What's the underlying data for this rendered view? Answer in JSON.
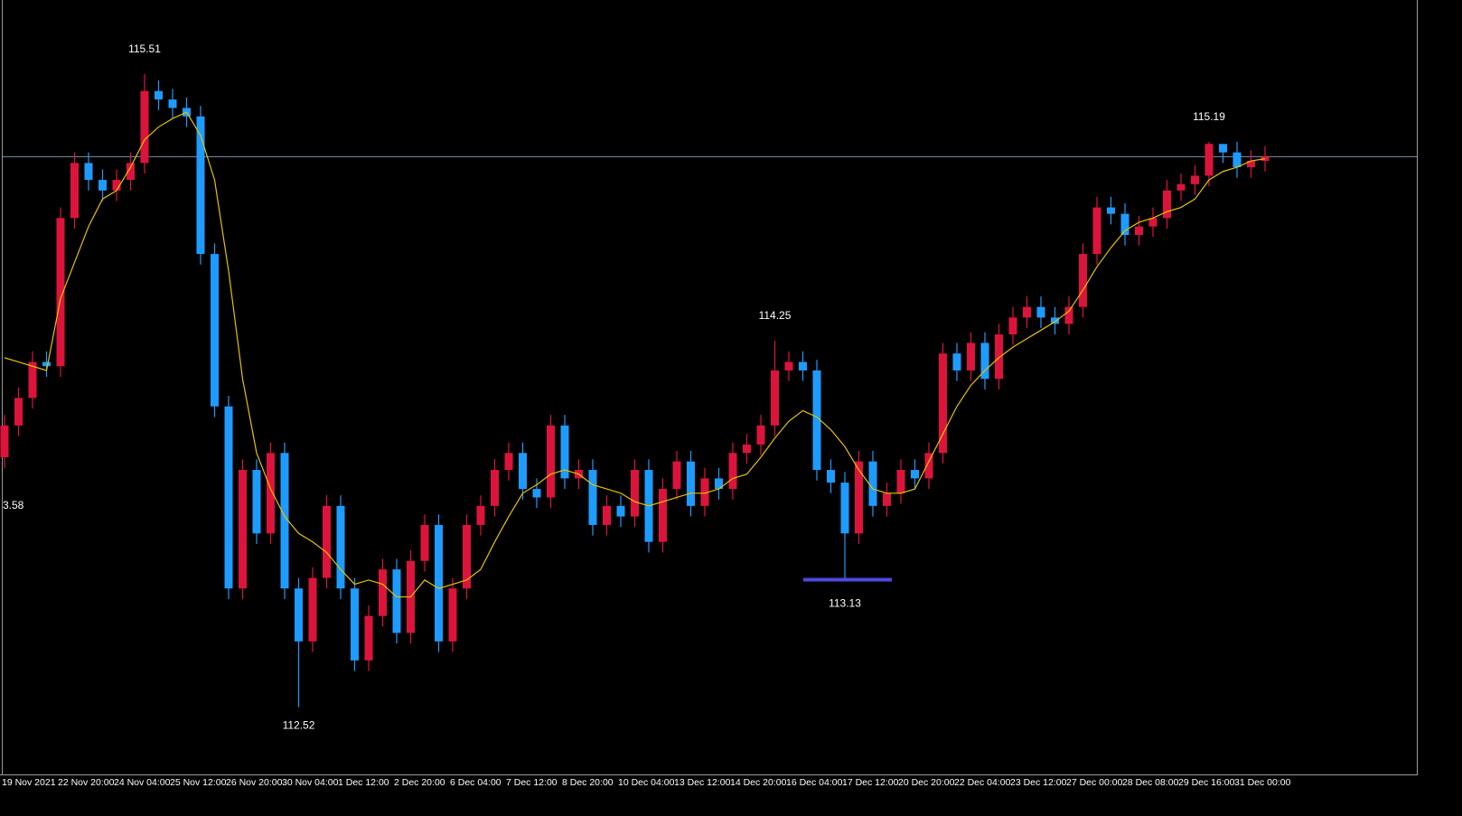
{
  "chart_data": {
    "type": "candlestick",
    "categories": [
      "19 Nov 2021",
      null,
      null,
      null,
      "22 Nov 20:00",
      null,
      null,
      null,
      "24 Nov 04:00",
      null,
      null,
      null,
      "25 Nov 12:00",
      null,
      null,
      null,
      "26 Nov 20:00",
      null,
      null,
      null,
      "30 Nov 04:00",
      null,
      null,
      null,
      "1 Dec 12:00",
      null,
      null,
      null,
      "2 Dec 20:00",
      null,
      null,
      null,
      "6 Dec 04:00",
      null,
      null,
      null,
      "7 Dec 12:00",
      null,
      null,
      null,
      "8 Dec 20:00",
      null,
      null,
      null,
      "10 Dec 04:00",
      null,
      null,
      null,
      "13 Dec 12:00",
      null,
      null,
      null,
      "14 Dec 20:00",
      null,
      null,
      null,
      "16 Dec 04:00",
      null,
      null,
      null,
      "17 Dec 12:00",
      null,
      null,
      null,
      "20 Dec 20:00",
      null,
      null,
      null,
      "22 Dec 04:00",
      null,
      null,
      null,
      "23 Dec 12:00",
      null,
      null,
      null,
      "27 Dec 00:00",
      null,
      null,
      null,
      "28 Dec 08:00",
      null,
      null,
      null,
      "29 Dec 16:00",
      null,
      null,
      null,
      "31 Dec 00:00",
      null,
      null
    ],
    "open": [
      113.7,
      113.85,
      113.98,
      114.15,
      114.13,
      114.83,
      115.09,
      115.01,
      114.96,
      115.01,
      115.09,
      115.43,
      115.39,
      115.35,
      115.31,
      114.66,
      113.94,
      113.08,
      113.64,
      113.34,
      113.72,
      113.08,
      112.83,
      113.13,
      113.47,
      113.08,
      112.74,
      112.95,
      113.17,
      112.87,
      113.21,
      113.38,
      112.83,
      113.08,
      113.38,
      113.47,
      113.64,
      113.72,
      113.55,
      113.51,
      113.85,
      113.6,
      113.64,
      113.38,
      113.47,
      113.42,
      113.64,
      113.3,
      113.55,
      113.68,
      113.47,
      113.6,
      113.55,
      113.72,
      113.76,
      113.85,
      114.11,
      114.15,
      114.11,
      113.64,
      113.58,
      113.34,
      113.68,
      113.47,
      113.53,
      113.64,
      113.6,
      113.72,
      114.19,
      114.11,
      114.24,
      114.07,
      114.28,
      114.36,
      114.41,
      114.36,
      114.33,
      114.41,
      114.66,
      114.88,
      114.85,
      114.75,
      114.79,
      114.83,
      114.96,
      114.99,
      115.03,
      115.18,
      115.14,
      115.07,
      115.1
    ],
    "high": [
      113.9,
      114.03,
      114.2,
      114.2,
      114.88,
      115.14,
      115.14,
      115.06,
      115.06,
      115.14,
      115.51,
      115.48,
      115.44,
      115.4,
      115.36,
      114.71,
      113.99,
      113.69,
      113.69,
      113.77,
      113.77,
      113.13,
      113.18,
      113.52,
      113.52,
      113.13,
      113.0,
      113.22,
      113.22,
      113.26,
      113.43,
      113.43,
      113.13,
      113.43,
      113.52,
      113.69,
      113.77,
      113.77,
      113.6,
      113.9,
      113.9,
      113.69,
      113.69,
      113.52,
      113.52,
      113.69,
      113.69,
      113.6,
      113.73,
      113.73,
      113.65,
      113.65,
      113.77,
      113.81,
      113.9,
      114.25,
      114.2,
      114.2,
      114.16,
      113.69,
      113.63,
      113.73,
      113.73,
      113.58,
      113.69,
      113.69,
      113.77,
      114.24,
      114.24,
      114.29,
      114.29,
      114.33,
      114.41,
      114.46,
      114.46,
      114.41,
      114.46,
      114.71,
      114.93,
      114.93,
      114.9,
      114.84,
      114.88,
      115.01,
      115.04,
      115.08,
      115.19,
      115.18,
      115.19,
      115.15,
      115.17
    ],
    "low": [
      113.65,
      113.8,
      113.93,
      114.08,
      114.08,
      114.78,
      114.96,
      114.91,
      114.91,
      114.96,
      115.04,
      115.34,
      115.3,
      115.26,
      114.61,
      113.89,
      113.03,
      113.03,
      113.29,
      113.29,
      113.03,
      112.52,
      112.78,
      113.08,
      113.03,
      112.69,
      112.69,
      112.9,
      112.82,
      112.82,
      113.16,
      112.78,
      112.78,
      113.03,
      113.33,
      113.42,
      113.59,
      113.5,
      113.46,
      113.46,
      113.55,
      113.55,
      113.33,
      113.33,
      113.37,
      113.37,
      113.25,
      113.25,
      113.5,
      113.42,
      113.42,
      113.5,
      113.5,
      113.67,
      113.71,
      113.8,
      114.06,
      114.06,
      113.59,
      113.53,
      113.13,
      113.29,
      113.42,
      113.42,
      113.48,
      113.55,
      113.55,
      113.67,
      114.06,
      114.06,
      114.02,
      114.02,
      114.23,
      114.31,
      114.31,
      114.28,
      114.28,
      114.36,
      114.61,
      114.8,
      114.7,
      114.7,
      114.74,
      114.78,
      114.91,
      114.94,
      114.98,
      115.09,
      115.02,
      115.02,
      115.05
    ],
    "close": [
      113.85,
      113.98,
      114.15,
      114.13,
      114.83,
      115.09,
      115.01,
      114.96,
      115.01,
      115.09,
      115.43,
      115.39,
      115.35,
      115.31,
      114.66,
      113.94,
      113.08,
      113.64,
      113.34,
      113.72,
      113.08,
      112.83,
      113.13,
      113.47,
      113.08,
      112.74,
      112.95,
      113.17,
      112.87,
      113.21,
      113.38,
      112.83,
      113.08,
      113.38,
      113.47,
      113.64,
      113.72,
      113.55,
      113.51,
      113.85,
      113.6,
      113.64,
      113.38,
      113.47,
      113.42,
      113.64,
      113.3,
      113.55,
      113.68,
      113.47,
      113.6,
      113.55,
      113.72,
      113.76,
      113.85,
      114.11,
      114.15,
      114.11,
      113.64,
      113.58,
      113.34,
      113.68,
      113.47,
      113.53,
      113.64,
      113.6,
      113.72,
      114.19,
      114.11,
      114.24,
      114.07,
      114.28,
      114.36,
      114.41,
      114.36,
      114.33,
      114.41,
      114.66,
      114.88,
      114.85,
      114.75,
      114.79,
      114.83,
      114.96,
      114.99,
      115.03,
      115.18,
      115.14,
      115.07,
      115.1,
      115.12
    ],
    "up_color": "#dc143c",
    "down_color": "#1e9bff",
    "moving_average": {
      "color": "#e6c200",
      "values": [
        114.17,
        114.15,
        114.13,
        114.11,
        114.45,
        114.62,
        114.79,
        114.92,
        114.96,
        115.07,
        115.2,
        115.26,
        115.3,
        115.33,
        115.22,
        115.01,
        114.58,
        114.07,
        113.72,
        113.55,
        113.42,
        113.34,
        113.3,
        113.25,
        113.17,
        113.1,
        113.12,
        113.1,
        113.04,
        113.04,
        113.12,
        113.08,
        113.1,
        113.12,
        113.17,
        113.3,
        113.42,
        113.53,
        113.57,
        113.62,
        113.64,
        113.62,
        113.57,
        113.55,
        113.53,
        113.49,
        113.47,
        113.49,
        113.51,
        113.53,
        113.53,
        113.55,
        113.6,
        113.62,
        113.7,
        113.79,
        113.87,
        113.92,
        113.89,
        113.83,
        113.75,
        113.64,
        113.55,
        113.53,
        113.53,
        113.55,
        113.68,
        113.81,
        113.94,
        114.04,
        114.11,
        114.17,
        114.22,
        114.26,
        114.3,
        114.34,
        114.39,
        114.49,
        114.6,
        114.69,
        114.77,
        114.81,
        114.83,
        114.86,
        114.88,
        114.92,
        115.01,
        115.05,
        115.07,
        115.1,
        115.11
      ]
    },
    "current_price": 115.12,
    "current_price_color": "#7f93a8",
    "support_level": 113.13,
    "support_color": "#4a4adf",
    "annotations": [
      115.51,
      112.52,
      114.25,
      115.19
    ],
    "left_label": "3.58",
    "ylim": [
      112.21,
      115.86
    ]
  }
}
